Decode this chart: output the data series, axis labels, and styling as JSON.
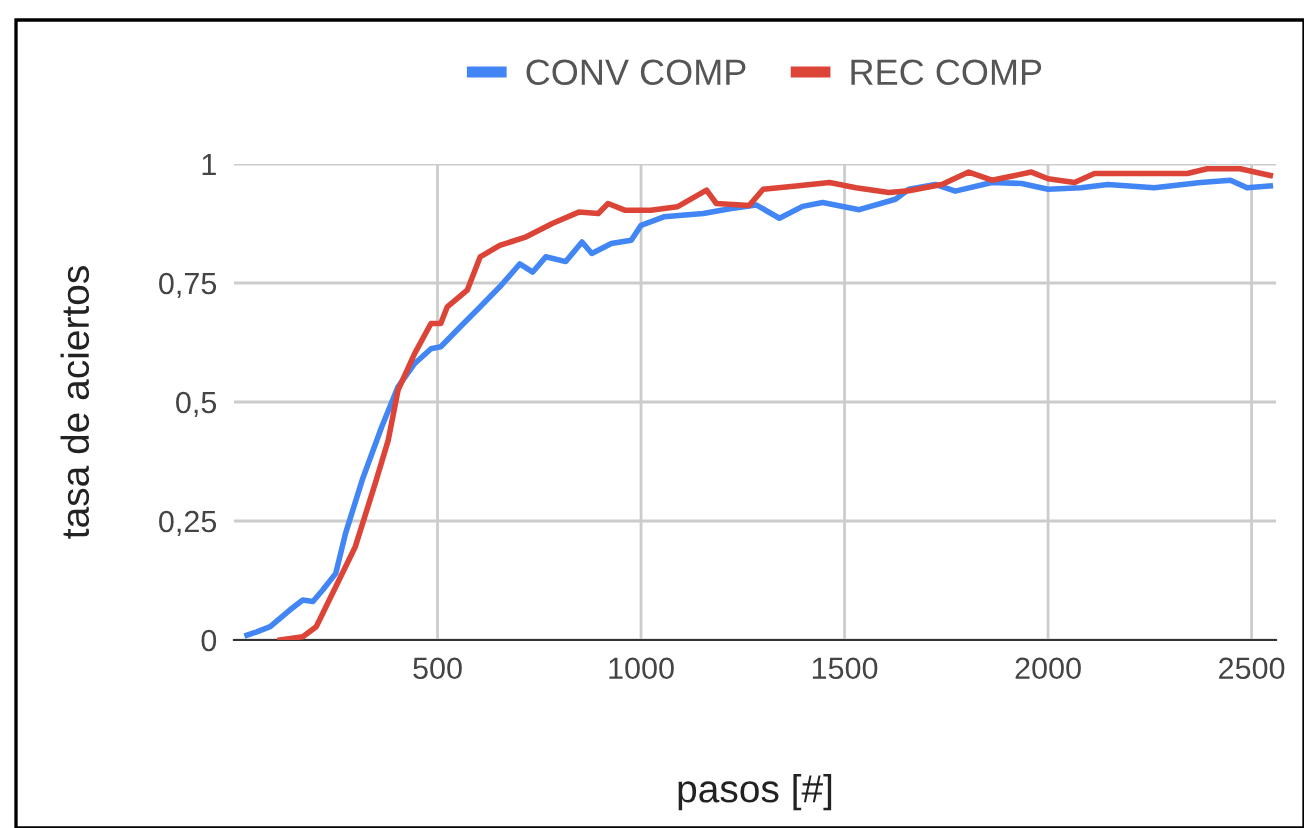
{
  "chart_data": {
    "type": "line",
    "xlabel": "pasos [#]",
    "ylabel": "tasa de aciertos",
    "xlim": [
      0,
      2560
    ],
    "xticks": [
      500,
      1000,
      1500,
      2000,
      2500
    ],
    "ylim": [
      0,
      1
    ],
    "yticks": [
      {
        "value": 0,
        "label": "0"
      },
      {
        "value": 0.25,
        "label": "0,25"
      },
      {
        "value": 0.5,
        "label": "0,5"
      },
      {
        "value": 0.75,
        "label": "0,75"
      },
      {
        "value": 1,
        "label": "1"
      }
    ],
    "grid": true,
    "legend": "top",
    "series": [
      {
        "name": "CONV COMP",
        "color": "#4285f4",
        "x": [
          32,
          56,
          89,
          137,
          169,
          194,
          218,
          250,
          274,
          315,
          363,
          403,
          444,
          484,
          508,
          556,
          605,
          653,
          702,
          734,
          766,
          815,
          855,
          879,
          927,
          976,
          1000,
          1056,
          1153,
          1218,
          1283,
          1340,
          1397,
          1446,
          1536,
          1625,
          1658,
          1723,
          1772,
          1862,
          1935,
          2000,
          2081,
          2147,
          2261,
          2375,
          2448,
          2489,
          2546
        ],
        "values": [
          0.01,
          0.017,
          0.028,
          0.063,
          0.084,
          0.081,
          0.105,
          0.14,
          0.224,
          0.336,
          0.448,
          0.532,
          0.581,
          0.612,
          0.616,
          0.658,
          0.7,
          0.742,
          0.79,
          0.773,
          0.805,
          0.795,
          0.836,
          0.812,
          0.833,
          0.84,
          0.871,
          0.889,
          0.896,
          0.906,
          0.914,
          0.886,
          0.911,
          0.919,
          0.904,
          0.926,
          0.947,
          0.957,
          0.943,
          0.961,
          0.959,
          0.947,
          0.95,
          0.957,
          0.95,
          0.961,
          0.966,
          0.95,
          0.954
        ]
      },
      {
        "name": "REC COMP",
        "color": "#db4437",
        "x": [
          113,
          169,
          202,
          250,
          298,
          347,
          379,
          403,
          444,
          484,
          508,
          524,
          573,
          605,
          653,
          718,
          782,
          847,
          895,
          919,
          960,
          1024,
          1089,
          1161,
          1185,
          1266,
          1300,
          1381,
          1463,
          1528,
          1609,
          1658,
          1739,
          1805,
          1862,
          1959,
          2000,
          2065,
          2114,
          2212,
          2342,
          2391,
          2472,
          2546
        ],
        "values": [
          0,
          0.007,
          0.028,
          0.112,
          0.196,
          0.329,
          0.42,
          0.525,
          0.602,
          0.665,
          0.665,
          0.7,
          0.735,
          0.805,
          0.829,
          0.847,
          0.875,
          0.899,
          0.896,
          0.917,
          0.903,
          0.903,
          0.91,
          0.945,
          0.917,
          0.913,
          0.947,
          0.954,
          0.961,
          0.95,
          0.94,
          0.944,
          0.957,
          0.983,
          0.966,
          0.983,
          0.969,
          0.961,
          0.98,
          0.98,
          0.98,
          0.99,
          0.99,
          0.976
        ]
      }
    ]
  }
}
